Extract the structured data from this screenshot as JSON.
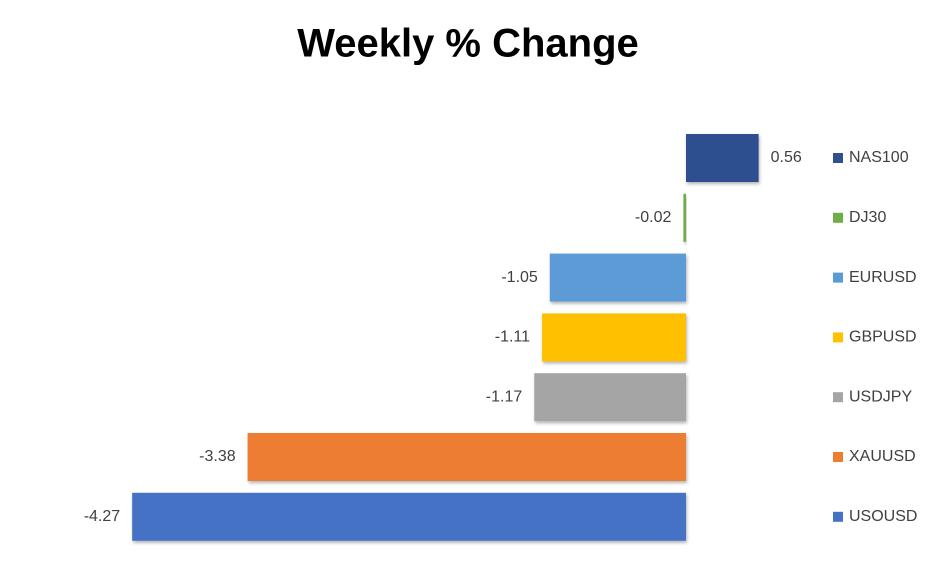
{
  "chart_data": {
    "type": "bar",
    "orientation": "horizontal",
    "title": "Weekly % Change",
    "series": [
      {
        "name": "NAS100",
        "color": "#2f4f8f",
        "values": [
          0.56
        ]
      },
      {
        "name": "DJ30",
        "color": "#70ad47",
        "values": [
          -0.02
        ]
      },
      {
        "name": "EURUSD",
        "color": "#5b9bd5",
        "values": [
          -1.05
        ]
      },
      {
        "name": "GBPUSD",
        "color": "#ffc000",
        "values": [
          -1.11
        ]
      },
      {
        "name": "USDJPY",
        "color": "#a5a5a5",
        "values": [
          -1.17
        ]
      },
      {
        "name": "XAUUSD",
        "color": "#ed7d31",
        "values": [
          -3.38
        ]
      },
      {
        "name": "USOUSD",
        "color": "#4472c4",
        "values": [
          -4.27
        ]
      }
    ],
    "legend": "right"
  }
}
